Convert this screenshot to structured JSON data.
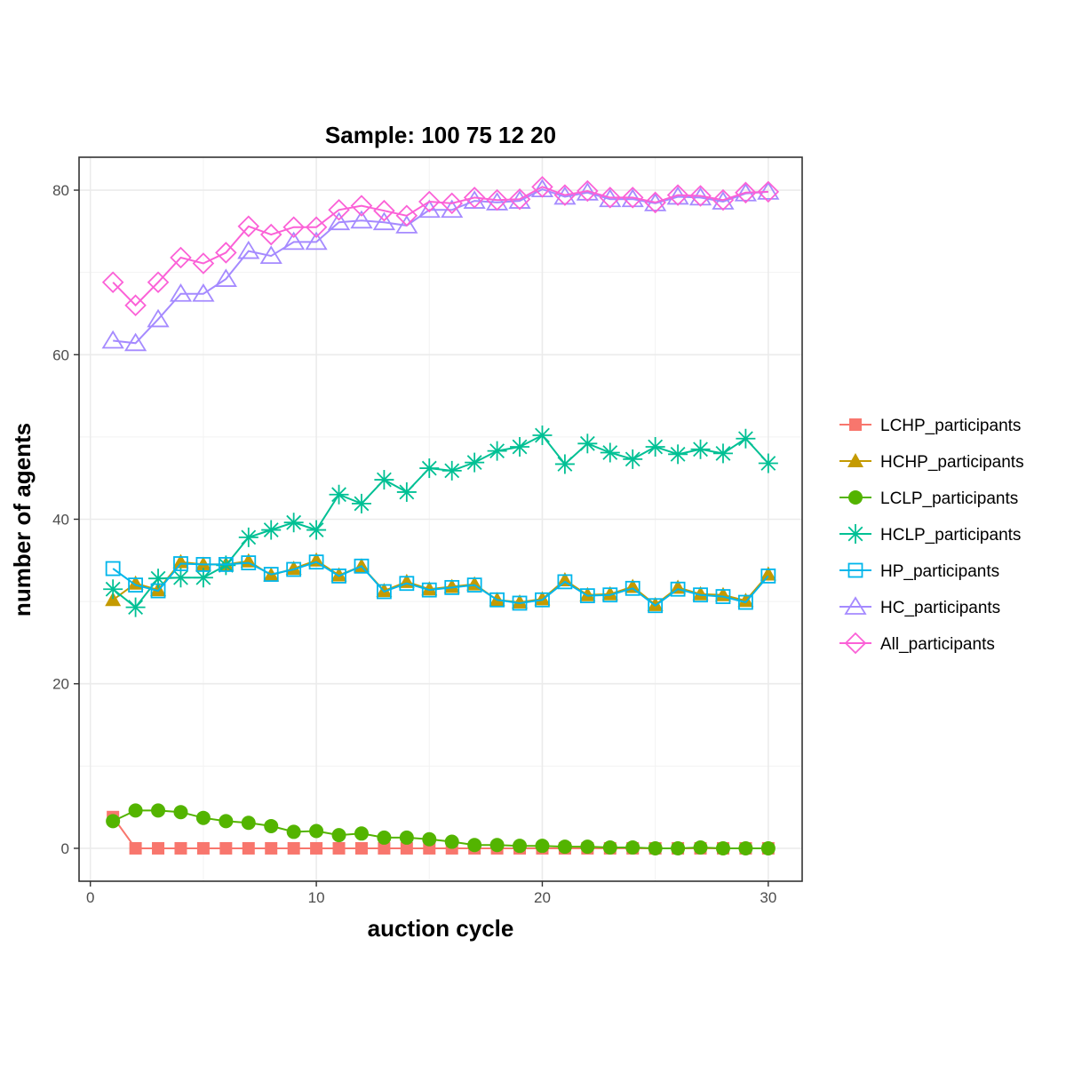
{
  "chart_data": {
    "type": "line",
    "title": "Sample: 100 75 12 20",
    "xlabel": "auction cycle",
    "ylabel": "number of agents",
    "xlim": [
      -0.5,
      31.5
    ],
    "ylim": [
      -4,
      84
    ],
    "x_ticks": [
      0,
      10,
      20,
      30
    ],
    "y_ticks": [
      0,
      20,
      40,
      60,
      80
    ],
    "grid": true,
    "legend_position": "right",
    "x": [
      1,
      2,
      3,
      4,
      5,
      6,
      7,
      8,
      9,
      10,
      11,
      12,
      13,
      14,
      15,
      16,
      17,
      18,
      19,
      20,
      21,
      22,
      23,
      24,
      25,
      26,
      27,
      28,
      29,
      30
    ],
    "series": [
      {
        "name": "LCHP_participants",
        "color": "#F8766D",
        "marker": "filled-square",
        "values": [
          3.8,
          0,
          0,
          0,
          0,
          0,
          0,
          0,
          0,
          0,
          0,
          0,
          0,
          0,
          0,
          0,
          0,
          0,
          0,
          0,
          0,
          0,
          0,
          0,
          0,
          0,
          0,
          0,
          0,
          0
        ]
      },
      {
        "name": "HCHP_participants",
        "color": "#C49A00",
        "marker": "filled-triangle",
        "values": [
          30.2,
          32.2,
          31.4,
          34.8,
          34.5,
          34.5,
          34.9,
          33.2,
          34.0,
          35.0,
          33.2,
          34.3,
          31.3,
          32.4,
          31.5,
          31.8,
          32.1,
          30.2,
          29.9,
          30.3,
          32.6,
          30.8,
          30.9,
          31.8,
          29.6,
          31.7,
          30.9,
          30.8,
          30.1,
          33.3
        ]
      },
      {
        "name": "LCLP_participants",
        "color": "#53B400",
        "marker": "filled-circle",
        "values": [
          3.3,
          4.6,
          4.6,
          4.4,
          3.7,
          3.3,
          3.1,
          2.7,
          2.0,
          2.1,
          1.6,
          1.8,
          1.3,
          1.3,
          1.1,
          0.8,
          0.4,
          0.4,
          0.3,
          0.3,
          0.2,
          0.2,
          0.1,
          0.1,
          0.0,
          0.0,
          0.1,
          0.0,
          0.0,
          0.0
        ]
      },
      {
        "name": "HCLP_participants",
        "color": "#00C094",
        "marker": "asterisk",
        "values": [
          31.5,
          29.3,
          32.8,
          32.9,
          32.9,
          34.4,
          37.8,
          38.7,
          39.6,
          38.7,
          43.0,
          41.9,
          44.8,
          43.3,
          46.2,
          45.9,
          46.9,
          48.3,
          48.8,
          50.2,
          46.7,
          49.2,
          48.1,
          47.3,
          48.8,
          47.9,
          48.5,
          48.0,
          49.8,
          46.8
        ]
      },
      {
        "name": "HP_participants",
        "color": "#00B6EB",
        "marker": "open-square",
        "values": [
          34.0,
          32.0,
          31.3,
          34.6,
          34.5,
          34.5,
          34.7,
          33.3,
          33.9,
          34.8,
          33.1,
          34.3,
          31.2,
          32.2,
          31.4,
          31.7,
          32.0,
          30.2,
          29.8,
          30.2,
          32.4,
          30.7,
          30.8,
          31.6,
          29.5,
          31.5,
          30.8,
          30.6,
          29.9,
          33.1
        ]
      },
      {
        "name": "HC_participants",
        "color": "#A58AFF",
        "marker": "open-triangle",
        "values": [
          61.7,
          61.4,
          64.3,
          67.4,
          67.4,
          69.2,
          72.6,
          72.0,
          73.7,
          73.7,
          76.1,
          76.3,
          76.1,
          75.7,
          77.6,
          77.6,
          78.7,
          78.5,
          78.7,
          80.1,
          79.2,
          79.7,
          78.9,
          78.9,
          78.4,
          79.2,
          79.1,
          78.6,
          79.6,
          79.8
        ]
      },
      {
        "name": "All_participants",
        "color": "#FB61D7",
        "marker": "open-diamond",
        "values": [
          68.8,
          66.0,
          68.8,
          71.8,
          71.1,
          72.4,
          75.6,
          74.6,
          75.5,
          75.5,
          77.6,
          78.1,
          77.5,
          76.9,
          78.6,
          78.4,
          79.1,
          78.8,
          78.9,
          80.4,
          79.4,
          79.9,
          79.1,
          79.1,
          78.5,
          79.4,
          79.3,
          78.8,
          79.7,
          79.8
        ]
      }
    ]
  }
}
